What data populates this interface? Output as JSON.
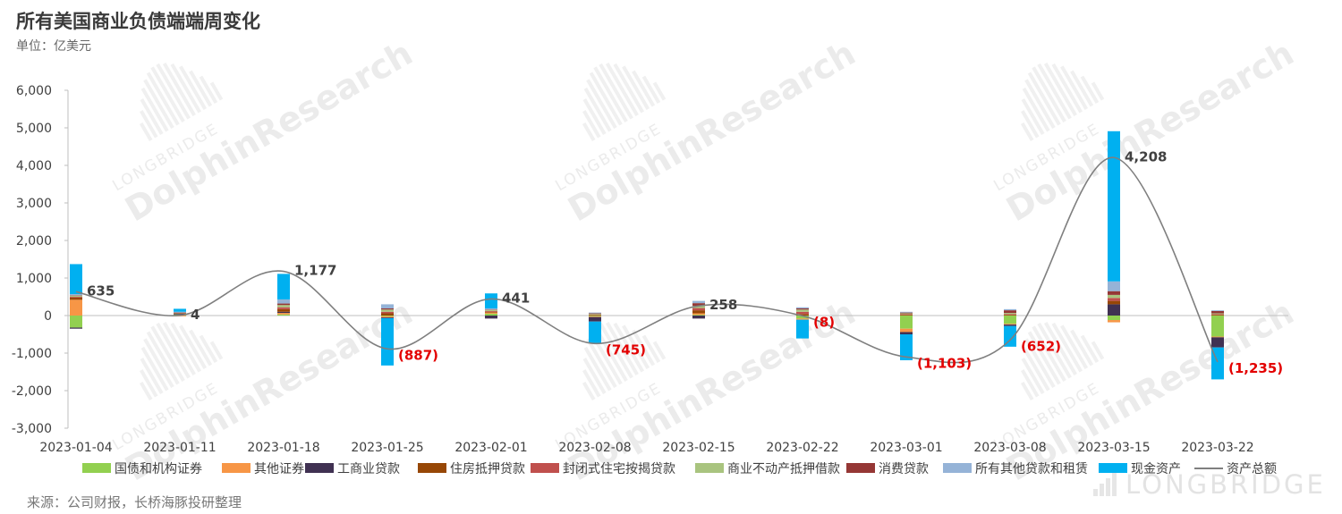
{
  "header": {
    "title": "所有美国商业负债端端周变化",
    "unit": "单位：亿美元"
  },
  "footer": {
    "source": "来源：公司财报，长桥海豚投研整理"
  },
  "watermark": {
    "small": "LONGBRIDGE",
    "large": "DolphinResearch",
    "brand": "LONGBRIDGE"
  },
  "chart_data": {
    "type": "bar",
    "stacked": true,
    "categories": [
      "2023-01-04",
      "2023-01-11",
      "2023-01-18",
      "2023-01-25",
      "2023-02-01",
      "2023-02-08",
      "2023-02-15",
      "2023-02-22",
      "2023-03-01",
      "2023-03-08",
      "2023-03-15",
      "2023-03-22"
    ],
    "ylim": [
      -3000,
      6000
    ],
    "yticks": [
      -3000,
      -2000,
      -1000,
      0,
      1000,
      2000,
      3000,
      4000,
      5000,
      6000
    ],
    "ytick_labels": [
      "-3,000",
      "-2,000",
      "-1,000",
      "0",
      "1,000",
      "2,000",
      "3,000",
      "4,000",
      "5,000",
      "6,000"
    ],
    "grid": false,
    "legend_position": "bottom",
    "series": [
      {
        "name": "国债和机构证券",
        "color": "#92d050",
        "values": [
          -320,
          30,
          30,
          -20,
          50,
          -20,
          20,
          -80,
          -350,
          -220,
          -120,
          -560
        ]
      },
      {
        "name": "其他证券",
        "color": "#f79646",
        "values": [
          420,
          -20,
          40,
          -30,
          30,
          -20,
          40,
          -30,
          -90,
          -20,
          -60,
          -20
        ]
      },
      {
        "name": "工商业贷款",
        "color": "#403152",
        "values": [
          -30,
          20,
          30,
          -20,
          -80,
          -120,
          -80,
          0,
          -60,
          -40,
          300,
          -270
        ]
      },
      {
        "name": "住房抵押贷款",
        "color": "#974706",
        "values": [
          60,
          10,
          70,
          60,
          20,
          20,
          80,
          40,
          20,
          20,
          90,
          20
        ]
      },
      {
        "name": "封闭式住宅按揭贷款",
        "color": "#c0504d",
        "values": [
          20,
          5,
          50,
          40,
          20,
          10,
          60,
          60,
          20,
          20,
          80,
          20
        ]
      },
      {
        "name": "商业不动产抵押借款",
        "color": "#a9c47f",
        "values": [
          30,
          10,
          60,
          60,
          30,
          20,
          60,
          60,
          20,
          30,
          80,
          20
        ]
      },
      {
        "name": "消费贷款",
        "color": "#953735",
        "values": [
          10,
          5,
          40,
          30,
          10,
          10,
          70,
          30,
          20,
          70,
          100,
          60
        ]
      },
      {
        "name": "所有其他贷款和租赁",
        "color": "#95b3d7",
        "values": [
          30,
          20,
          110,
          110,
          30,
          20,
          60,
          30,
          20,
          30,
          260,
          20
        ]
      },
      {
        "name": "现金资产",
        "color": "#00b0f0",
        "values": [
          800,
          80,
          680,
          -1260,
          400,
          -580,
          0,
          -500,
          -690,
          -550,
          4000,
          -850
        ]
      }
    ],
    "total": {
      "name": "资产总额",
      "color": "#7f7f7f",
      "values": [
        635,
        4,
        1177,
        -887,
        441,
        -745,
        258,
        -8,
        -1103,
        -652,
        4208,
        -1235
      ],
      "labels": [
        "635",
        "4",
        "1,177",
        "(887)",
        "441",
        "(745)",
        "258",
        "(8)",
        "(1,103)",
        "(652)",
        "4,208",
        "(1,235)"
      ]
    }
  }
}
